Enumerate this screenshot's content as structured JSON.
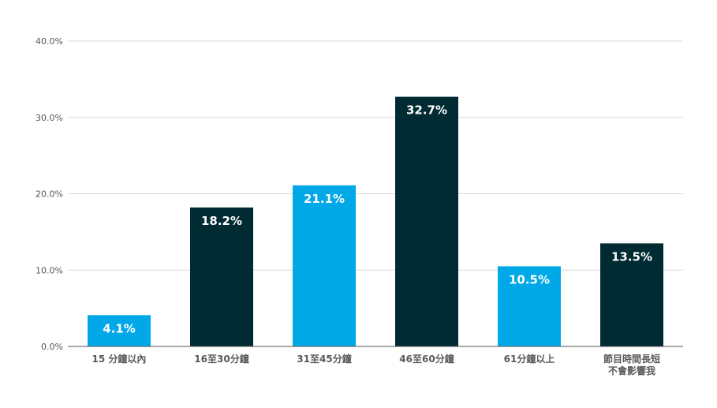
{
  "chart_data": {
    "type": "bar",
    "categories": [
      "15 分鐘以內",
      "16至30分鐘",
      "31至45分鐘",
      "46至60分鐘",
      "61分鐘以上",
      [
        "節目時間長短",
        "不會影響我"
      ]
    ],
    "values": [
      4.1,
      18.2,
      21.1,
      32.7,
      10.5,
      13.5
    ],
    "value_labels": [
      "4.1%",
      "18.2%",
      "21.1%",
      "32.7%",
      "10.5%",
      "13.5%"
    ],
    "bar_colors": [
      "#00a8e8",
      "#002b32",
      "#00a8e8",
      "#002b32",
      "#00a8e8",
      "#002b32"
    ],
    "y_ticks": [
      0,
      10,
      20,
      30,
      40
    ],
    "y_tick_labels": [
      "0.0%",
      "10.0%",
      "20.0%",
      "30.0%",
      "40.0%"
    ],
    "ylim": [
      0,
      40
    ],
    "grid": true,
    "colors": {
      "grid": "#d9d9d9",
      "axis": "#555555",
      "tick_text": "#555555",
      "category_text": "#595959",
      "value_text": "#ffffff"
    }
  }
}
